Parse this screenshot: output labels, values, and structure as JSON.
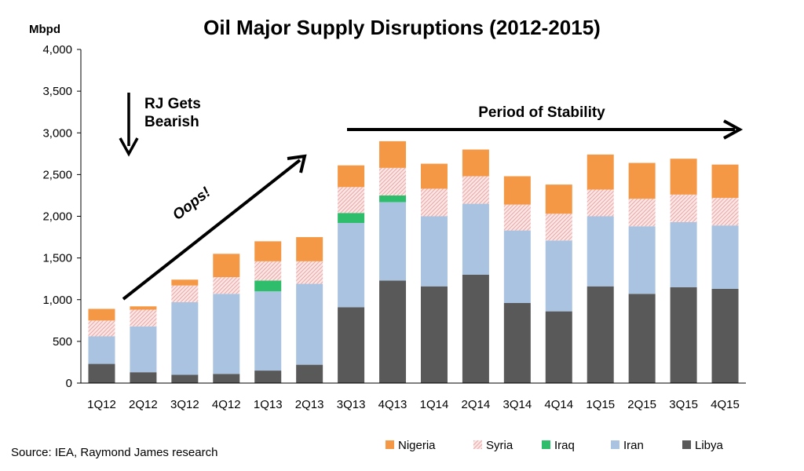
{
  "chart_data": {
    "type": "bar",
    "stacked": true,
    "title": "Oil Major Supply Disruptions (2012-2015)",
    "ylabel": "Mbpd",
    "xlabel": "",
    "ylim": [
      0,
      4000
    ],
    "yticks": [
      0,
      500,
      1000,
      1500,
      2000,
      2500,
      3000,
      3500,
      4000
    ],
    "ytick_labels": [
      "0",
      "500",
      "1,000",
      "1,500",
      "2,000",
      "2,500",
      "3,000",
      "3,500",
      "4,000"
    ],
    "categories": [
      "1Q12",
      "2Q12",
      "3Q12",
      "4Q12",
      "1Q13",
      "2Q13",
      "3Q13",
      "4Q13",
      "1Q14",
      "2Q14",
      "3Q14",
      "4Q14",
      "1Q15",
      "2Q15",
      "3Q15",
      "4Q15"
    ],
    "series": [
      {
        "name": "Libya",
        "color": "#595959",
        "pattern": "solid",
        "values": [
          230,
          130,
          100,
          110,
          150,
          220,
          910,
          1230,
          1160,
          1300,
          960,
          860,
          1160,
          1070,
          1150,
          1130
        ]
      },
      {
        "name": "Iran",
        "color": "#a9c3e0",
        "pattern": "solid",
        "values": [
          330,
          550,
          870,
          960,
          950,
          970,
          1010,
          940,
          840,
          850,
          870,
          850,
          840,
          810,
          780,
          760
        ]
      },
      {
        "name": "Iraq",
        "color": "#2ebd6b",
        "pattern": "solid",
        "values": [
          0,
          0,
          0,
          0,
          130,
          0,
          120,
          80,
          0,
          0,
          0,
          0,
          0,
          0,
          0,
          0
        ]
      },
      {
        "name": "Syria",
        "color": "#f2c6c6",
        "pattern": "hatched",
        "values": [
          190,
          200,
          200,
          200,
          230,
          270,
          310,
          330,
          330,
          330,
          310,
          320,
          320,
          330,
          330,
          330
        ]
      },
      {
        "name": "Nigeria",
        "color": "#f59845",
        "pattern": "solid",
        "values": [
          140,
          40,
          70,
          280,
          240,
          290,
          260,
          320,
          300,
          320,
          340,
          350,
          420,
          430,
          430,
          400
        ]
      }
    ],
    "legend_order": [
      "Nigeria",
      "Syria",
      "Iraq",
      "Iran",
      "Libya"
    ],
    "legend_position": "bottom",
    "grid": false
  },
  "annotations": {
    "bearish": [
      "RJ Gets",
      "Bearish"
    ],
    "oops": "Oops!",
    "stability": "Period of Stability"
  },
  "source": "Source: IEA, Raymond James research"
}
